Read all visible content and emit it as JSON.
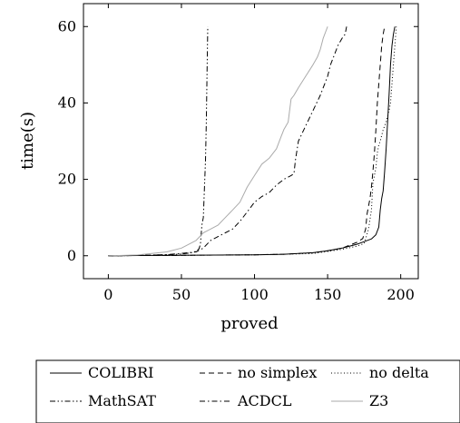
{
  "chart_data": {
    "type": "line",
    "title": "",
    "xlabel": "proved",
    "ylabel": "time(s)",
    "xlim": [
      -17,
      212
    ],
    "ylim": [
      -6,
      66
    ],
    "xticks": [
      0,
      50,
      100,
      150,
      200
    ],
    "yticks": [
      0,
      20,
      40,
      60
    ],
    "legend_position": "below",
    "series": [
      {
        "name": "COLIBRI",
        "style": "solid",
        "color": "#000000",
        "x": [
          0,
          20,
          50,
          100,
          120,
          140,
          150,
          160,
          170,
          175,
          180,
          183,
          185,
          186,
          187,
          188,
          189,
          190,
          191,
          192,
          193,
          194,
          195,
          196
        ],
        "y": [
          0,
          0.05,
          0.1,
          0.25,
          0.4,
          0.8,
          1.3,
          2,
          3,
          3.7,
          4.4,
          5.5,
          7.5,
          12,
          15,
          17,
          22,
          28,
          35,
          42,
          50,
          55,
          58,
          60
        ]
      },
      {
        "name": "no simplex",
        "style": "dashed",
        "color": "#000000",
        "x": [
          0,
          20,
          50,
          100,
          120,
          140,
          150,
          160,
          170,
          174,
          176,
          177,
          178,
          179,
          180,
          181,
          182,
          183,
          184,
          185,
          186,
          187,
          188,
          189
        ],
        "y": [
          0,
          0.05,
          0.1,
          0.25,
          0.4,
          0.8,
          1.3,
          2,
          3.5,
          4.5,
          7,
          11,
          13,
          15,
          18,
          22,
          27,
          33,
          40,
          45,
          50,
          55,
          58,
          60
        ]
      },
      {
        "name": "no delta",
        "style": "dotted",
        "color": "#000000",
        "x": [
          0,
          20,
          50,
          100,
          120,
          140,
          150,
          160,
          170,
          175,
          178,
          180,
          181,
          183,
          184,
          185,
          186,
          188,
          190,
          192,
          193,
          194,
          195,
          196,
          197
        ],
        "y": [
          0,
          0.05,
          0.1,
          0.25,
          0.4,
          0.6,
          1.1,
          1.7,
          2.5,
          3.2,
          7,
          12,
          19,
          23,
          27,
          29,
          30,
          33,
          35,
          38,
          40,
          45,
          50,
          55,
          60
        ]
      },
      {
        "name": "MathSAT",
        "style": "dashdotdot",
        "color": "#000000",
        "x": [
          0,
          20,
          40,
          50,
          55,
          58,
          60,
          62,
          63,
          64,
          65,
          66,
          66.5,
          67,
          67.5,
          68
        ],
        "y": [
          0,
          0.1,
          0.25,
          0.45,
          0.7,
          0.9,
          1.2,
          1.8,
          3,
          8,
          10,
          20,
          25,
          35,
          48,
          60
        ]
      },
      {
        "name": "ACDCL",
        "style": "dashdot",
        "color": "#000000",
        "x": [
          0,
          20,
          40,
          50,
          60,
          65,
          70,
          75,
          80,
          85,
          90,
          95,
          100,
          105,
          110,
          115,
          120,
          125,
          127,
          128,
          130,
          135,
          140,
          145,
          150,
          152,
          155,
          157,
          160,
          162,
          163
        ],
        "y": [
          0,
          0.1,
          0.3,
          0.6,
          1,
          2,
          4,
          5,
          6,
          7,
          9,
          11.5,
          14,
          15.5,
          16.5,
          18.5,
          20,
          21,
          21.5,
          25,
          30,
          34,
          38,
          42,
          47,
          50,
          53,
          55,
          57,
          58,
          60
        ]
      },
      {
        "name": "Z3",
        "style": "solid",
        "color": "#aaaaaa",
        "x": [
          0,
          20,
          40,
          50,
          60,
          65,
          70,
          75,
          80,
          85,
          90,
          95,
          100,
          105,
          110,
          115,
          118,
          120,
          123,
          125,
          127,
          130,
          135,
          140,
          143,
          145,
          147,
          149,
          150
        ],
        "y": [
          0,
          0.2,
          1,
          2,
          4,
          6,
          7,
          8,
          10,
          12,
          14,
          18,
          21,
          24,
          25.5,
          28,
          31,
          33,
          35,
          41,
          42,
          44,
          47,
          50,
          52,
          54,
          57,
          59,
          60
        ]
      }
    ]
  }
}
